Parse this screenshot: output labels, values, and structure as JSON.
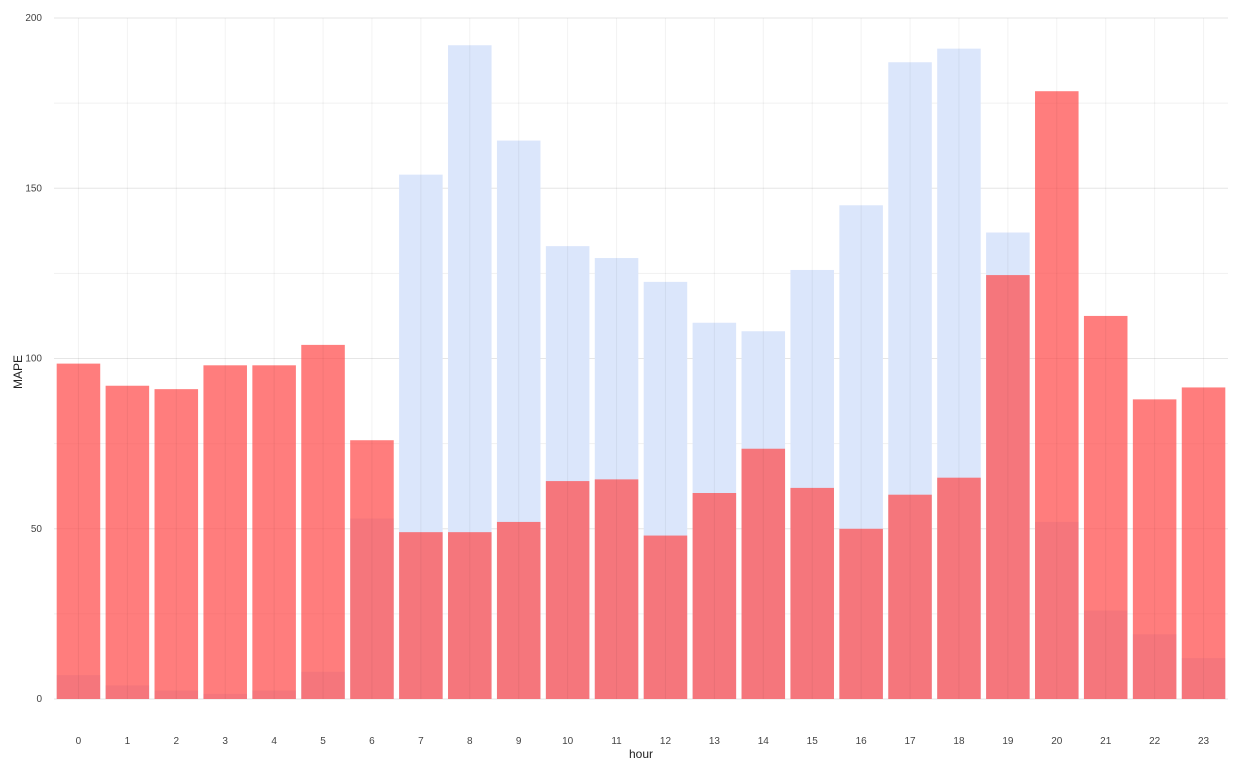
{
  "chart_data": {
    "type": "bar",
    "title": "",
    "xlabel": "hour",
    "ylabel": "MAPE",
    "ylim": [
      0,
      200
    ],
    "yticks": [
      0,
      50,
      100,
      150,
      200
    ],
    "grid": true,
    "categories": [
      "0",
      "1",
      "2",
      "3",
      "4",
      "5",
      "6",
      "7",
      "8",
      "9",
      "10",
      "11",
      "12",
      "13",
      "14",
      "15",
      "16",
      "17",
      "18",
      "19",
      "20",
      "21",
      "22",
      "23"
    ],
    "series": [
      {
        "name": "light blue series",
        "color": "#dbe6fb",
        "values": [
          7,
          4,
          2.5,
          1.5,
          2.5,
          8,
          53,
          154,
          192,
          164,
          133,
          129.5,
          122.5,
          110.5,
          108,
          126,
          145,
          187,
          191,
          137,
          52,
          26,
          19,
          12
        ]
      },
      {
        "name": "red series",
        "color": "#ff4b4b",
        "opacity": 0.72,
        "values": [
          98.5,
          92,
          91,
          98,
          98,
          104,
          76,
          49,
          49,
          52,
          64,
          64.5,
          48,
          60.5,
          73.5,
          62,
          50,
          60,
          65,
          124.5,
          178.5,
          112.5,
          88,
          91.5
        ]
      }
    ]
  }
}
